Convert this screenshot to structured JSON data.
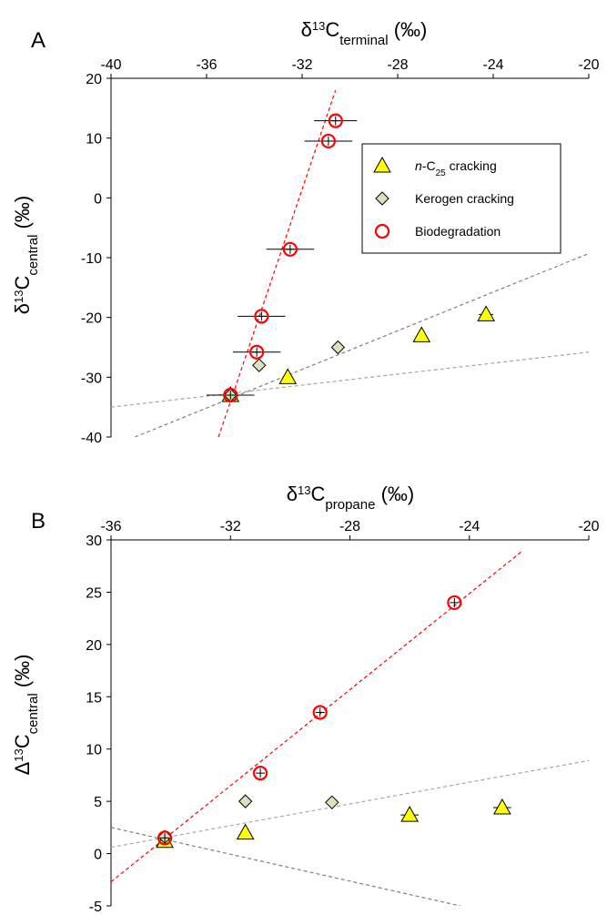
{
  "chart_data": [
    {
      "type": "scatter",
      "panel_label": "A",
      "x_title": {
        "prefix": "δ",
        "sup": "13",
        "main": "C",
        "sub": "terminal",
        "suffix": " (‰)"
      },
      "y_title": {
        "prefix": "δ",
        "sup": "13",
        "main": "C",
        "sub": "central",
        "suffix": " (‰)"
      },
      "xlim": [
        -40,
        -20
      ],
      "ylim": [
        -40,
        20
      ],
      "x_ticks": [
        "-40",
        "-36",
        "-32",
        "-28",
        "-24",
        "-20"
      ],
      "y_ticks": [
        "20",
        "10",
        "0",
        "-10",
        "-20",
        "-30",
        "-40"
      ],
      "x_axis_position": "top",
      "grid": false,
      "legend_position": "top-right",
      "series": [
        {
          "name_pre": "n",
          "name_mid": "-C",
          "name_sub": "25",
          "name_post": " cracking",
          "marker": "triangle",
          "color": "#ffff00",
          "points": [
            {
              "x": -35.0,
              "y": -33.0,
              "xerr": 0,
              "yerr": 0
            },
            {
              "x": -32.6,
              "y": -30.0,
              "xerr": 0,
              "yerr": 0
            },
            {
              "x": -27.0,
              "y": -23.0,
              "xerr": 0,
              "yerr": 0
            },
            {
              "x": -24.3,
              "y": -19.5,
              "xerr": 0.3,
              "yerr": 0
            }
          ]
        },
        {
          "name_pre": "",
          "name_mid": "Kerogen cracking",
          "name_sub": "",
          "name_post": "",
          "marker": "diamond",
          "color": "#d7e4bd",
          "points": [
            {
              "x": -35.0,
              "y": -33.0,
              "xerr": 0,
              "yerr": 0
            },
            {
              "x": -33.8,
              "y": -28.0,
              "xerr": 0,
              "yerr": 0
            },
            {
              "x": -30.5,
              "y": -25.0,
              "xerr": 0,
              "yerr": 0
            }
          ]
        },
        {
          "name_pre": "",
          "name_mid": "Biodegradation",
          "name_sub": "",
          "name_post": "",
          "marker": "circle",
          "color": "#ff0000",
          "points": [
            {
              "x": -35.0,
              "y": -33.0,
              "xerr": 1.0,
              "yerr": 0
            },
            {
              "x": -33.9,
              "y": -25.8,
              "xerr": 1.0,
              "yerr": 0
            },
            {
              "x": -33.7,
              "y": -19.8,
              "xerr": 1.0,
              "yerr": 0
            },
            {
              "x": -32.5,
              "y": -8.6,
              "xerr": 1.0,
              "yerr": 0
            },
            {
              "x": -30.9,
              "y": 9.5,
              "xerr": 1.0,
              "yerr": 0
            },
            {
              "x": -30.6,
              "y": 12.9,
              "xerr": 0.9,
              "yerr": 0
            }
          ]
        }
      ],
      "trendlines": [
        {
          "color": "#ff0000",
          "dash": "dashed",
          "from": [
            -35.5,
            -40
          ],
          "to": [
            -30.6,
            18
          ]
        },
        {
          "color": "#7f7f7f",
          "dash": "dashed",
          "from": [
            -39.0,
            -40
          ],
          "to": [
            -20.0,
            -9.3
          ]
        },
        {
          "color": "#a6a6a6",
          "dash": "dashed",
          "from": [
            -40.0,
            -35.0
          ],
          "to": [
            -20.0,
            -25.8
          ]
        }
      ]
    },
    {
      "type": "scatter",
      "panel_label": "B",
      "x_title": {
        "prefix": "δ",
        "sup": "13",
        "main": "C",
        "sub": "propane",
        "suffix": " (‰)"
      },
      "y_title": {
        "prefix": "Δ",
        "sup": "13",
        "main": "C",
        "sub": "central",
        "suffix": " (‰)"
      },
      "xlim": [
        -36,
        -20
      ],
      "ylim": [
        -5,
        30
      ],
      "x_ticks": [
        "-36",
        "-32",
        "-28",
        "-24",
        "-20"
      ],
      "y_ticks": [
        "30",
        "25",
        "20",
        "15",
        "10",
        "5",
        "0",
        "-5"
      ],
      "x_axis_position": "top",
      "grid": false,
      "series": [
        {
          "marker": "triangle",
          "color": "#ffff00",
          "points": [
            {
              "x": -34.2,
              "y": 1.2,
              "xerr": 0,
              "yerr": 0
            },
            {
              "x": -31.5,
              "y": 2.0,
              "xerr": 0,
              "yerr": 0
            },
            {
              "x": -26.0,
              "y": 3.7,
              "xerr": 0.3,
              "yerr": 0
            },
            {
              "x": -22.9,
              "y": 4.4,
              "xerr": 0.3,
              "yerr": 0
            }
          ]
        },
        {
          "marker": "diamond",
          "color": "#d7e4bd",
          "points": [
            {
              "x": -34.2,
              "y": 1.6,
              "xerr": 0,
              "yerr": 0
            },
            {
              "x": -31.5,
              "y": 5.0,
              "xerr": 0,
              "yerr": 0
            },
            {
              "x": -28.6,
              "y": 4.9,
              "xerr": 0,
              "yerr": 0
            }
          ]
        },
        {
          "marker": "circle",
          "color": "#ff0000",
          "points": [
            {
              "x": -34.2,
              "y": 1.5,
              "xerr": 0,
              "yerr": 0
            },
            {
              "x": -31.0,
              "y": 7.7,
              "xerr": 0,
              "yerr": 0
            },
            {
              "x": -29.0,
              "y": 13.5,
              "xerr": 0,
              "yerr": 0
            },
            {
              "x": -24.5,
              "y": 24.0,
              "xerr": 0,
              "yerr": 0
            }
          ]
        }
      ],
      "trendlines": [
        {
          "color": "#ff0000",
          "dash": "dashed",
          "from": [
            -36.0,
            -2.7
          ],
          "to": [
            -22.2,
            29.0
          ]
        },
        {
          "color": "#a6a6a6",
          "dash": "dashed",
          "from": [
            -36.0,
            0.6
          ],
          "to": [
            -20.0,
            8.9
          ]
        },
        {
          "color": "#7f7f7f",
          "dash": "dashed",
          "from": [
            -36.0,
            2.5
          ],
          "to": [
            -24.3,
            -5.0
          ]
        }
      ]
    }
  ]
}
